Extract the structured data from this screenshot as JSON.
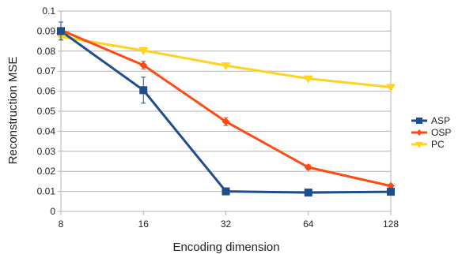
{
  "chart_data": {
    "type": "line",
    "x": [
      8,
      16,
      32,
      64,
      128
    ],
    "x_scale": "log2",
    "xlabel": "Encoding dimension",
    "ylabel": "Reconstruction MSE",
    "ylim": [
      0,
      0.1
    ],
    "y_ticks": [
      "0",
      "0.01",
      "0.02",
      "0.03",
      "0.04",
      "0.05",
      "0.06",
      "0.07",
      "0.08",
      "0.09",
      "0.1"
    ],
    "x_ticks": [
      "8",
      "16",
      "32",
      "64",
      "128"
    ],
    "grid": "horizontal",
    "legend_position": "right",
    "series": [
      {
        "name": "ASP",
        "color": "#1f4e8c",
        "marker": "square",
        "values": [
          0.09,
          0.0605,
          0.01,
          0.0094,
          0.0098
        ],
        "error": [
          0.0045,
          0.0065,
          0.0007,
          0.0007,
          0.0007
        ]
      },
      {
        "name": "OSP",
        "color": "#ff4a13",
        "marker": "diamond",
        "values": [
          0.0905,
          0.073,
          0.0448,
          0.022,
          0.0127
        ],
        "error": [
          0.001,
          0.002,
          0.002,
          0.0012,
          0.0008
        ]
      },
      {
        "name": "PC",
        "color": "#ffd320",
        "marker": "triangle-down",
        "values": [
          0.0872,
          0.0803,
          0.0728,
          0.0663,
          0.062
        ],
        "error": [
          0.0005,
          0.0005,
          0.0005,
          0.0005,
          0.0005
        ]
      }
    ]
  }
}
